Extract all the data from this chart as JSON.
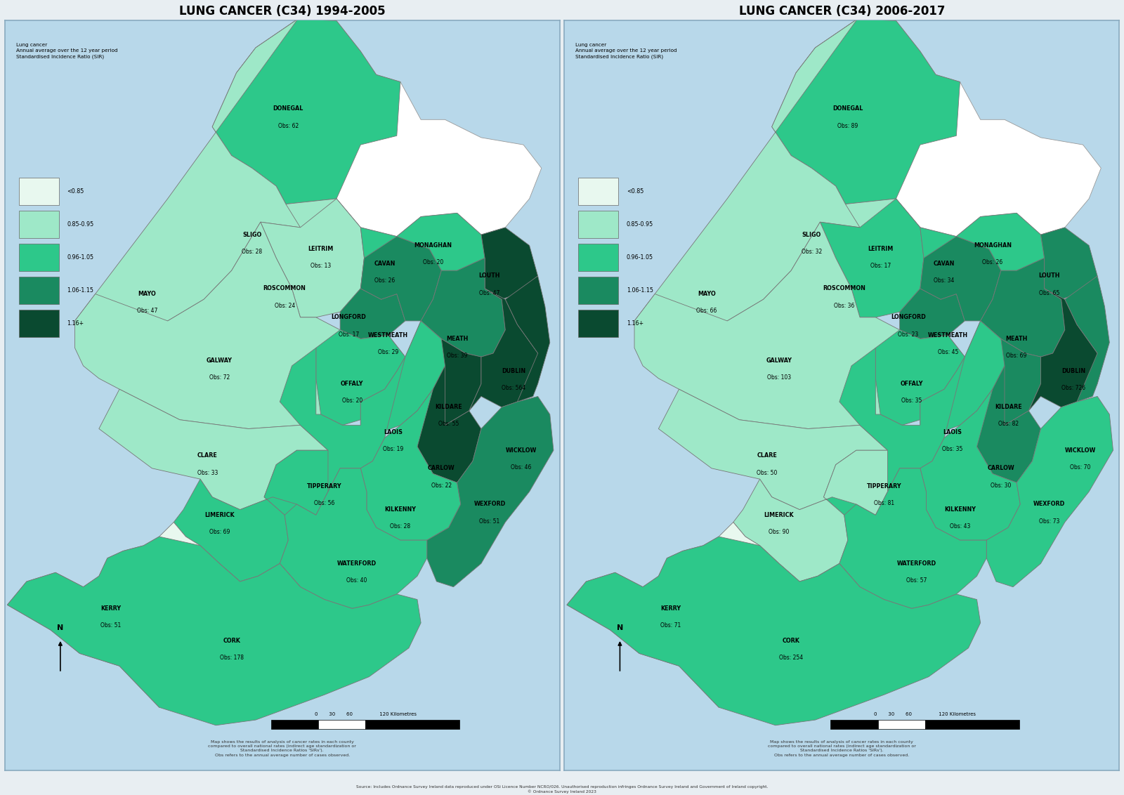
{
  "title1": "LUNG CANCER (C34) 1994-2005",
  "title2": "LUNG CANCER (C34) 2006-2017",
  "legend_title": "Lung cancer\nAnnual average over the 12 year period\nStandardised Incidence Ratio (SIR)",
  "legend_labels": [
    "<0.85",
    "0.85-0.95",
    "0.96-1.05",
    "1.06-1.15",
    "1.16+"
  ],
  "legend_colors": [
    "#e8f8ef",
    "#9ee8c8",
    "#2dc88a",
    "#1a8a60",
    "#0a4a30"
  ],
  "bg_color": "#b8d8ea",
  "panel_bg": "#cde6f0",
  "county_border": "#777777",
  "note_text": "Map shows the results of analysis of cancer rates in each county\ncompared to overall national rates (indirect age standardization or\nStandardised Incidence Ratios 'SIRs').\nObs refers to the annual average number of cases observed.",
  "source_text": "Source: Includes Ordnance Survey Ireland data reproduced under OSi Licence Number NCRO/026. Unauthorised reproduction infringes Ordnance Survey Ireland and Government of Ireland copyright.\n© Ordnance Survey Ireland 2023",
  "counties_1994": {
    "DONEGAL": {
      "obs": 62,
      "sir_cat": 2
    },
    "SLIGO": {
      "obs": 28,
      "sir_cat": 2
    },
    "LEITRIM": {
      "obs": 13,
      "sir_cat": 1
    },
    "MAYO": {
      "obs": 47,
      "sir_cat": 1
    },
    "ROSCOMMON": {
      "obs": 24,
      "sir_cat": 1
    },
    "CAVAN": {
      "obs": 26,
      "sir_cat": 2
    },
    "MONAGHAN": {
      "obs": 20,
      "sir_cat": 2
    },
    "LOUTH": {
      "obs": 47,
      "sir_cat": 4
    },
    "LONGFORD": {
      "obs": 17,
      "sir_cat": 3
    },
    "WESTMEATH": {
      "obs": 29,
      "sir_cat": 3
    },
    "MEATH": {
      "obs": 39,
      "sir_cat": 3
    },
    "GALWAY": {
      "obs": 72,
      "sir_cat": 1
    },
    "OFFALY": {
      "obs": 20,
      "sir_cat": 2
    },
    "KILDARE": {
      "obs": 55,
      "sir_cat": 4
    },
    "DUBLIN": {
      "obs": 564,
      "sir_cat": 4
    },
    "LAOIS": {
      "obs": 19,
      "sir_cat": 2
    },
    "WICKLOW": {
      "obs": 46,
      "sir_cat": 4
    },
    "CLARE": {
      "obs": 33,
      "sir_cat": 1
    },
    "TIPPERARY": {
      "obs": 56,
      "sir_cat": 2
    },
    "CARLOW": {
      "obs": 22,
      "sir_cat": 4
    },
    "KILKENNY": {
      "obs": 28,
      "sir_cat": 2
    },
    "WEXFORD": {
      "obs": 51,
      "sir_cat": 3
    },
    "LIMERICK": {
      "obs": 69,
      "sir_cat": 2
    },
    "WATERFORD": {
      "obs": 40,
      "sir_cat": 2
    },
    "KERRY": {
      "obs": 51,
      "sir_cat": 0
    },
    "CORK": {
      "obs": 178,
      "sir_cat": 2
    }
  },
  "counties_2006": {
    "DONEGAL": {
      "obs": 89,
      "sir_cat": 2
    },
    "SLIGO": {
      "obs": 32,
      "sir_cat": 1
    },
    "LEITRIM": {
      "obs": 17,
      "sir_cat": 1
    },
    "MAYO": {
      "obs": 66,
      "sir_cat": 1
    },
    "ROSCOMMON": {
      "obs": 36,
      "sir_cat": 2
    },
    "CAVAN": {
      "obs": 34,
      "sir_cat": 2
    },
    "MONAGHAN": {
      "obs": 26,
      "sir_cat": 2
    },
    "LOUTH": {
      "obs": 65,
      "sir_cat": 3
    },
    "LONGFORD": {
      "obs": 23,
      "sir_cat": 3
    },
    "WESTMEATH": {
      "obs": 45,
      "sir_cat": 3
    },
    "MEATH": {
      "obs": 69,
      "sir_cat": 3
    },
    "GALWAY": {
      "obs": 103,
      "sir_cat": 1
    },
    "OFFALY": {
      "obs": 35,
      "sir_cat": 2
    },
    "KILDARE": {
      "obs": 82,
      "sir_cat": 3
    },
    "DUBLIN": {
      "obs": 726,
      "sir_cat": 4
    },
    "LAOIS": {
      "obs": 35,
      "sir_cat": 2
    },
    "WICKLOW": {
      "obs": 70,
      "sir_cat": 3
    },
    "CLARE": {
      "obs": 50,
      "sir_cat": 1
    },
    "TIPPERARY": {
      "obs": 81,
      "sir_cat": 2
    },
    "CARLOW": {
      "obs": 30,
      "sir_cat": 3
    },
    "KILKENNY": {
      "obs": 43,
      "sir_cat": 2
    },
    "WEXFORD": {
      "obs": 73,
      "sir_cat": 2
    },
    "LIMERICK": {
      "obs": 90,
      "sir_cat": 1
    },
    "WATERFORD": {
      "obs": 57,
      "sir_cat": 2
    },
    "KERRY": {
      "obs": 71,
      "sir_cat": 0
    },
    "CORK": {
      "obs": 254,
      "sir_cat": 2
    }
  }
}
